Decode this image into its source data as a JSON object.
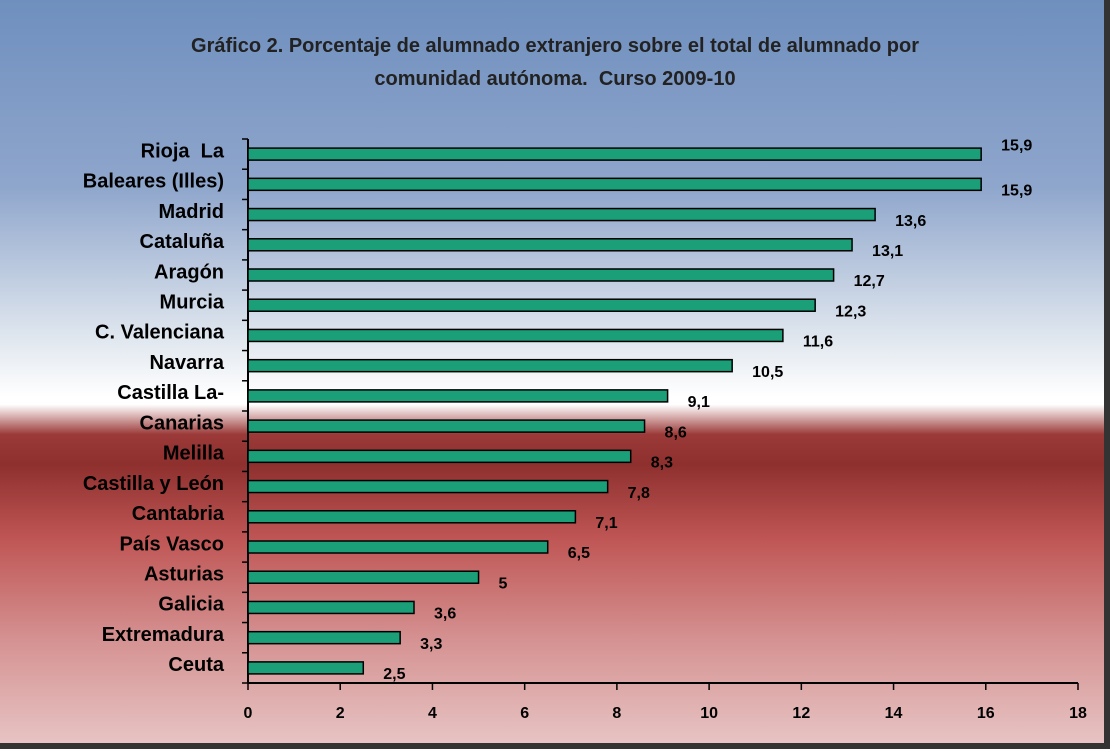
{
  "chart_data": {
    "type": "bar",
    "orientation": "horizontal",
    "title": "Gráfico 2. Porcentaje de alumnado extranjero sobre el total de alumnado por comunidad autónoma.  Curso 2009-10",
    "categories": [
      "Rioja  La",
      "Baleares (Illes)",
      "Madrid",
      "Cataluña",
      "Aragón",
      "Murcia",
      "C. Valenciana",
      "Navarra",
      "Castilla La-",
      "Canarias",
      "Melilla",
      "Castilla y León",
      "Cantabria",
      "País Vasco",
      "Asturias",
      "Galicia",
      "Extremadura",
      "Ceuta"
    ],
    "values": [
      15.9,
      15.9,
      13.6,
      13.1,
      12.7,
      12.3,
      11.6,
      10.5,
      9.1,
      8.6,
      8.3,
      7.8,
      7.1,
      6.5,
      5,
      3.6,
      3.3,
      2.5
    ],
    "value_labels": [
      "15,9",
      "15,9",
      "13,6",
      "13,1",
      "12,7",
      "12,3",
      "11,6",
      "10,5",
      "9,1",
      "8,6",
      "8,3",
      "7,8",
      "7,1",
      "6,5",
      "5",
      "3,6",
      "3,3",
      "2,5"
    ],
    "color": "#1a9f78",
    "xlim": [
      0,
      18
    ],
    "xticks": [
      0,
      2,
      4,
      6,
      8,
      10,
      12,
      14,
      16,
      18
    ]
  }
}
